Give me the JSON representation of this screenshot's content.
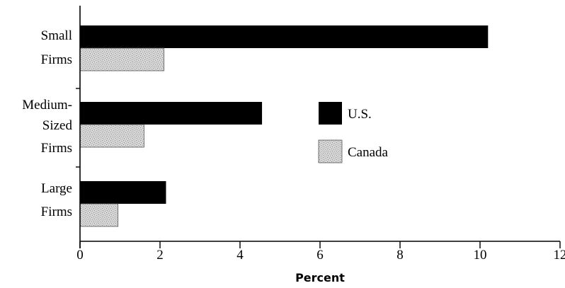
{
  "chart_data": {
    "type": "bar",
    "orientation": "horizontal",
    "categories": [
      [
        "Small",
        "Firms"
      ],
      [
        "Medium-",
        "Sized",
        "Firms"
      ],
      [
        "Large",
        "Firms"
      ]
    ],
    "series": [
      {
        "name": "U.S.",
        "values": [
          10.2,
          4.55,
          2.15
        ],
        "color": "#000000",
        "pattern": "solid"
      },
      {
        "name": "Canada",
        "values": [
          2.1,
          1.6,
          0.95
        ],
        "color": "#c8c8c8",
        "pattern": "stipple"
      }
    ],
    "xlabel": "Percent",
    "xlim": [
      0,
      12
    ],
    "xticks": [
      "0",
      "2",
      "4",
      "6",
      "8",
      "10",
      "12"
    ],
    "grid": false,
    "legend_position": "right-center"
  }
}
